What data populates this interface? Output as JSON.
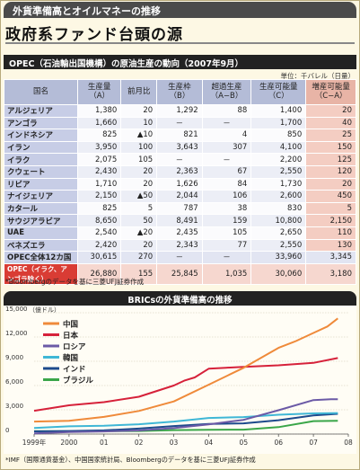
{
  "banner": "外貨準備高とオイルマネーの推移",
  "main_title": "政府系ファンド台頭の源",
  "table": {
    "header": "OPEC（石油輸出国機構）の原油生産の動向（2007年9月）",
    "unit": "単位：千バレル（日量）",
    "columns": [
      "国名",
      "生産量\n（A）",
      "前月比",
      "生産枠\n（B）",
      "超過生産\n（A−B）",
      "生産可能量\n（C）",
      "増産可能量\n（C−A）"
    ],
    "rows": [
      [
        "アルジェリア",
        "1,380",
        "20",
        "1,292",
        "88",
        "1,400",
        "20"
      ],
      [
        "アンゴラ",
        "1,660",
        "10",
        "－",
        "－",
        "1,700",
        "40"
      ],
      [
        "インドネシア",
        "825",
        "▲10",
        "821",
        "4",
        "850",
        "25"
      ],
      [
        "イラン",
        "3,950",
        "100",
        "3,643",
        "307",
        "4,100",
        "150"
      ],
      [
        "イラク",
        "2,075",
        "105",
        "－",
        "－",
        "2,200",
        "125"
      ],
      [
        "クウェート",
        "2,430",
        "20",
        "2,363",
        "67",
        "2,550",
        "120"
      ],
      [
        "リビア",
        "1,710",
        "20",
        "1,626",
        "84",
        "1,730",
        "20"
      ],
      [
        "ナイジェリア",
        "2,150",
        "▲50",
        "2,044",
        "106",
        "2,600",
        "450"
      ],
      [
        "カタール",
        "825",
        "5",
        "787",
        "38",
        "830",
        "5"
      ],
      [
        "サウジアラビア",
        "8,650",
        "50",
        "8,491",
        "159",
        "10,800",
        "2,150"
      ],
      [
        "UAE",
        "2,540",
        "▲20",
        "2,435",
        "105",
        "2,650",
        "110"
      ],
      [
        "ベネズエラ",
        "2,420",
        "20",
        "2,343",
        "77",
        "2,550",
        "130"
      ],
      [
        "OPEC全体12カ国",
        "30,615",
        "270",
        "－",
        "－",
        "33,960",
        "3,345"
      ],
      [
        "OPEC（イラク、アンゴラ除く）",
        "26,880",
        "155",
        "25,845",
        "1,035",
        "30,060",
        "3,180"
      ]
    ],
    "note": "*Bloombergのデータを基に三菱UFJ証券作成"
  },
  "chart_header": "BRICsの外貨準備高の推移",
  "chart_note": "*IMF（国際通貨基金）、中国国家統計局、Bloombergのデータを基に三菱UFJ証券作成",
  "chart_data": {
    "type": "line",
    "title": "BRICsの外貨準備高の推移",
    "ylabel": "（億ドル）",
    "ylim": [
      0,
      15000
    ],
    "yticks": [
      0,
      3000,
      6000,
      9000,
      12000,
      15000
    ],
    "ytick_labels": [
      "0",
      "3,000",
      "6,000",
      "9,000",
      "12,000",
      "15,000"
    ],
    "xlim": [
      1999,
      2008
    ],
    "xticks": [
      1999,
      2000,
      2001,
      2002,
      2003,
      2004,
      2005,
      2006,
      2007,
      2008
    ],
    "xtick_labels": [
      "1999年",
      "2000",
      "01",
      "02",
      "03",
      "04",
      "05",
      "06",
      "07",
      "08"
    ],
    "legend_position": "top-left",
    "series": [
      {
        "name": "中国",
        "color": "#ef8a3a",
        "x": [
          1999.0,
          2000.0,
          2001.0,
          2002.0,
          2003.0,
          2004.0,
          2005.0,
          2006.0,
          2006.5,
          2007.0,
          2007.4,
          2007.7
        ],
        "values": [
          1550,
          1650,
          2120,
          2860,
          4030,
          6100,
          8190,
          10660,
          11500,
          12500,
          13300,
          14300
        ]
      },
      {
        "name": "日本",
        "color": "#d6213a",
        "x": [
          1999.0,
          2000.0,
          2001.0,
          2002.0,
          2003.0,
          2003.3,
          2003.6,
          2004.0,
          2004.5,
          2005.0,
          2006.0,
          2007.0,
          2007.7
        ],
        "values": [
          2880,
          3550,
          3950,
          4610,
          6000,
          6600,
          7000,
          8080,
          8200,
          8300,
          8500,
          8800,
          9400
        ]
      },
      {
        "name": "ロシア",
        "color": "#6b5aa6",
        "x": [
          1999.0,
          2000.0,
          2001.0,
          2002.0,
          2003.0,
          2004.0,
          2005.0,
          2006.0,
          2007.0,
          2007.5,
          2007.7
        ],
        "values": [
          80,
          240,
          320,
          440,
          730,
          1200,
          1760,
          2950,
          4200,
          4300,
          4300
        ]
      },
      {
        "name": "韓国",
        "color": "#3fb7d6",
        "x": [
          1999.0,
          2000.0,
          2001.0,
          2002.0,
          2003.0,
          2004.0,
          2005.0,
          2006.0,
          2007.0,
          2007.7
        ],
        "values": [
          740,
          960,
          1030,
          1210,
          1550,
          1990,
          2100,
          2390,
          2550,
          2600
        ]
      },
      {
        "name": "インド",
        "color": "#1d4a8c",
        "x": [
          1999.0,
          2000.0,
          2001.0,
          2002.0,
          2003.0,
          2004.0,
          2005.0,
          2006.0,
          2007.0,
          2007.7
        ],
        "values": [
          330,
          380,
          460,
          680,
          990,
          1260,
          1320,
          1710,
          2300,
          2500
        ]
      },
      {
        "name": "ブラジル",
        "color": "#3aa649",
        "x": [
          1999.0,
          2000.0,
          2001.0,
          2002.0,
          2003.0,
          2004.0,
          2005.0,
          2006.0,
          2007.0,
          2007.7
        ],
        "values": [
          360,
          330,
          360,
          380,
          490,
          530,
          540,
          860,
          1600,
          1650
        ]
      }
    ]
  }
}
